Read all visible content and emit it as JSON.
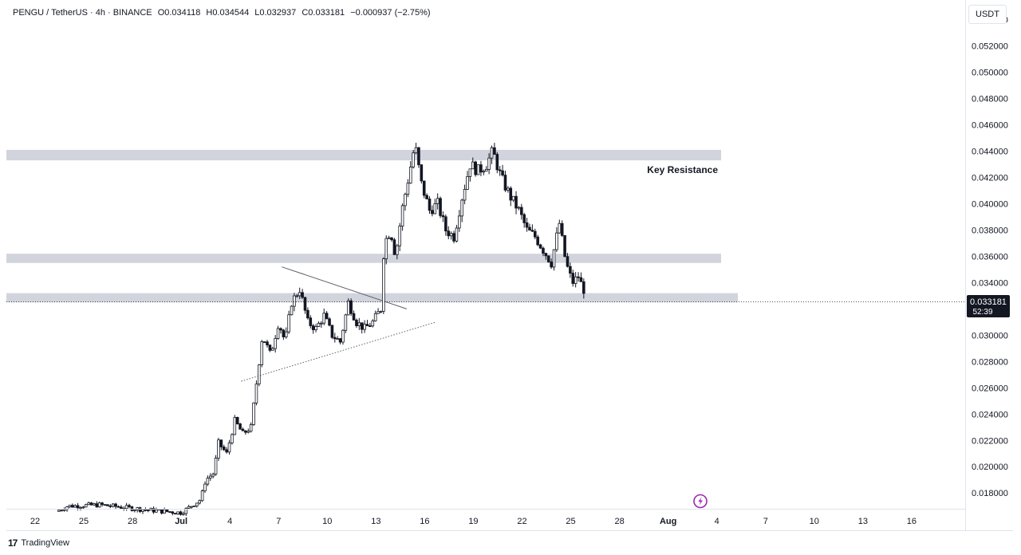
{
  "legend": {
    "symbol": "PENGU / TetherUS · 4h · BINANCE",
    "open": "O0.034118",
    "high": "H0.034544",
    "low": "L0.032937",
    "close": "C0.033181",
    "change": "−0.000937 (−2.75%)"
  },
  "currency_label": "USDT",
  "price_tag": {
    "price": "0.033181",
    "countdown": "52:39"
  },
  "footer": {
    "brand": "TradingView",
    "logo": "tradingview-logo-icon"
  },
  "annotations": {
    "resistance_label": "Key Resistance"
  },
  "icons": {
    "lightning": "lightning-icon"
  },
  "colors": {
    "candle": "#131722",
    "zone": "#d1d4dc",
    "price_tag_bg": "#131722",
    "lightning": "#9c27b0",
    "grid": "#f0f3fa"
  },
  "chart_data": {
    "type": "candlestick",
    "title": "PENGU / TetherUS · 4h · BINANCE",
    "x_ticks": [
      "22",
      "25",
      "28",
      "Jul",
      "4",
      "7",
      "10",
      "13",
      "16",
      "19",
      "22",
      "25",
      "28",
      "Aug",
      "4",
      "7",
      "10",
      "13",
      "16"
    ],
    "y_ticks": [
      "0.018000",
      "0.020000",
      "0.022000",
      "0.024000",
      "0.026000",
      "0.028000",
      "0.030000",
      "0.032000",
      "0.034000",
      "0.036000",
      "0.038000",
      "0.040000",
      "0.042000",
      "0.044000",
      "0.046000",
      "0.048000",
      "0.050000",
      "0.052000",
      "0.054000"
    ],
    "ylim": [
      0.0168,
      0.0555
    ],
    "grid": false,
    "horizontal_zones": [
      {
        "low": 0.0433,
        "high": 0.0441,
        "label": "Key Resistance"
      },
      {
        "low": 0.0355,
        "high": 0.0362,
        "label": ""
      },
      {
        "low": 0.0325,
        "high": 0.0332,
        "label": ""
      }
    ],
    "trendlines": [
      {
        "style": "solid",
        "from": {
          "day": 15.2,
          "price": 0.0352
        },
        "to": {
          "day": 22.9,
          "price": 0.032
        }
      },
      {
        "style": "dotted",
        "from": {
          "day": 12.7,
          "price": 0.0265
        },
        "to": {
          "day": 24.7,
          "price": 0.031
        }
      }
    ],
    "last_price": 0.033181,
    "anchors": [
      {
        "day": 1.3,
        "price": 0.0166
      },
      {
        "day": 2.0,
        "price": 0.017
      },
      {
        "day": 4.0,
        "price": 0.0171
      },
      {
        "day": 5.5,
        "price": 0.0169
      },
      {
        "day": 7.0,
        "price": 0.0167
      },
      {
        "day": 9.0,
        "price": 0.0165
      },
      {
        "day": 10.2,
        "price": 0.0175
      },
      {
        "day": 10.5,
        "price": 0.019
      },
      {
        "day": 11.0,
        "price": 0.0195
      },
      {
        "day": 11.3,
        "price": 0.0218
      },
      {
        "day": 11.8,
        "price": 0.021
      },
      {
        "day": 12.3,
        "price": 0.0235
      },
      {
        "day": 12.8,
        "price": 0.0225
      },
      {
        "day": 13.3,
        "price": 0.023
      },
      {
        "day": 13.55,
        "price": 0.0255
      },
      {
        "day": 14.0,
        "price": 0.03
      },
      {
        "day": 14.5,
        "price": 0.0285
      },
      {
        "day": 15.0,
        "price": 0.031
      },
      {
        "day": 15.4,
        "price": 0.0295
      },
      {
        "day": 15.8,
        "price": 0.0325
      },
      {
        "day": 16.3,
        "price": 0.0335
      },
      {
        "day": 16.8,
        "price": 0.031
      },
      {
        "day": 17.3,
        "price": 0.0305
      },
      {
        "day": 17.8,
        "price": 0.0315
      },
      {
        "day": 18.3,
        "price": 0.03
      },
      {
        "day": 18.8,
        "price": 0.0295
      },
      {
        "day": 19.3,
        "price": 0.0325
      },
      {
        "day": 19.8,
        "price": 0.031
      },
      {
        "day": 20.3,
        "price": 0.0305
      },
      {
        "day": 20.8,
        "price": 0.031
      },
      {
        "day": 21.3,
        "price": 0.032
      },
      {
        "day": 21.5,
        "price": 0.037
      },
      {
        "day": 21.9,
        "price": 0.038
      },
      {
        "day": 22.2,
        "price": 0.036
      },
      {
        "day": 22.6,
        "price": 0.0395
      },
      {
        "day": 23.0,
        "price": 0.042
      },
      {
        "day": 23.4,
        "price": 0.0445
      },
      {
        "day": 23.8,
        "price": 0.0415
      },
      {
        "day": 24.3,
        "price": 0.0395
      },
      {
        "day": 24.8,
        "price": 0.04
      },
      {
        "day": 25.3,
        "price": 0.038
      },
      {
        "day": 25.8,
        "price": 0.0375
      },
      {
        "day": 26.3,
        "price": 0.0405
      },
      {
        "day": 26.8,
        "price": 0.043
      },
      {
        "day": 27.3,
        "price": 0.0425
      },
      {
        "day": 27.8,
        "price": 0.043
      },
      {
        "day": 28.2,
        "price": 0.044
      },
      {
        "day": 28.7,
        "price": 0.042
      },
      {
        "day": 29.3,
        "price": 0.0405
      },
      {
        "day": 29.8,
        "price": 0.0395
      },
      {
        "day": 30.3,
        "price": 0.038
      },
      {
        "day": 30.8,
        "price": 0.0375
      },
      {
        "day": 31.3,
        "price": 0.0365
      },
      {
        "day": 31.8,
        "price": 0.0355
      },
      {
        "day": 32.3,
        "price": 0.0385
      },
      {
        "day": 32.7,
        "price": 0.0355
      },
      {
        "day": 33.1,
        "price": 0.034
      },
      {
        "day": 33.5,
        "price": 0.0345
      },
      {
        "day": 33.8,
        "price": 0.03318
      }
    ]
  }
}
